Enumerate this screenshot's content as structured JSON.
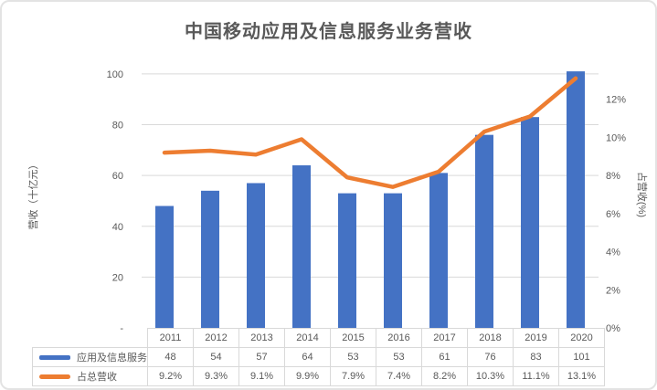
{
  "chart_data": {
    "type": "combo-bar-line",
    "title": "中国移动应用及信息服务业务营收",
    "categories": [
      "2011",
      "2012",
      "2013",
      "2014",
      "2015",
      "2016",
      "2017",
      "2018",
      "2019",
      "2020"
    ],
    "series": [
      {
        "name": "应用及信息服务",
        "type": "bar",
        "axis": "primary",
        "color": "#4472C4",
        "values": [
          48,
          54,
          57,
          64,
          53,
          53,
          61,
          76,
          83,
          101
        ],
        "display": [
          "48",
          "54",
          "57",
          "64",
          "53",
          "53",
          "61",
          "76",
          "83",
          "101"
        ]
      },
      {
        "name": "占总营收",
        "type": "line",
        "axis": "secondary",
        "color": "#ED7D31",
        "values": [
          9.2,
          9.3,
          9.1,
          9.9,
          7.9,
          7.4,
          8.2,
          10.3,
          11.1,
          13.1
        ],
        "display": [
          "9.2%",
          "9.3%",
          "9.1%",
          "9.9%",
          "7.9%",
          "7.4%",
          "8.2%",
          "10.3%",
          "11.1%",
          "13.1%"
        ]
      }
    ],
    "left_axis": {
      "title": "营收（十亿元）",
      "range": [
        0,
        105
      ],
      "ticks": [
        {
          "label": "100",
          "value": 100
        },
        {
          "label": "80",
          "value": 80
        },
        {
          "label": "60",
          "value": 60
        },
        {
          "label": "40",
          "value": 40
        },
        {
          "label": "20",
          "value": 20
        },
        {
          "label": "-",
          "value": 0
        }
      ]
    },
    "right_axis": {
      "title": "占营收(%)",
      "range": [
        0,
        14
      ],
      "ticks": [
        {
          "label": "12%",
          "value": 12
        },
        {
          "label": "10%",
          "value": 10
        },
        {
          "label": "8%",
          "value": 8
        },
        {
          "label": "6%",
          "value": 6
        },
        {
          "label": "4%",
          "value": 4
        },
        {
          "label": "2%",
          "value": 2
        },
        {
          "label": "0%",
          "value": 0
        }
      ]
    },
    "grid": "horizontal",
    "gridline_color": "#d9d9d9",
    "legend_position": "data-table-left",
    "data_table": true
  }
}
